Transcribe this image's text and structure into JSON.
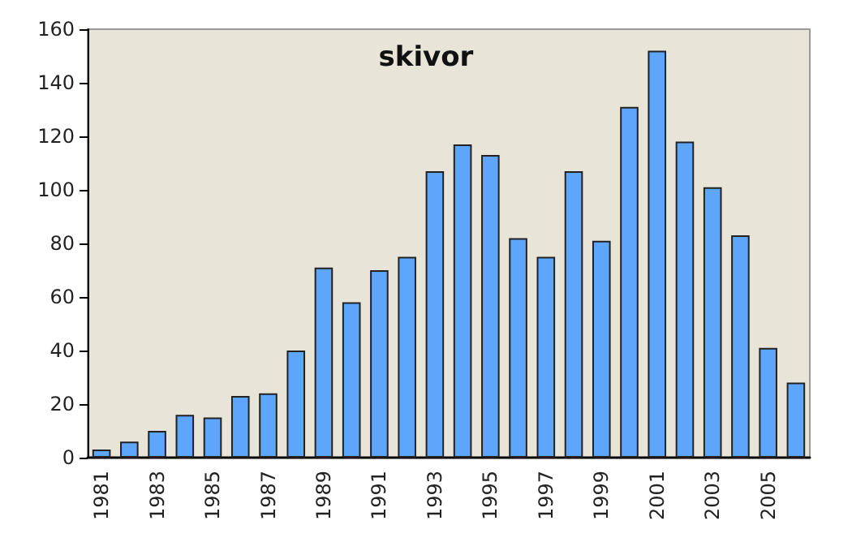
{
  "chart_data": {
    "type": "bar",
    "title": "skivor",
    "categories": [
      "1981",
      null,
      "1983",
      null,
      "1985",
      null,
      "1987",
      null,
      "1989",
      null,
      "1991",
      null,
      "1993",
      null,
      "1995",
      null,
      "1997",
      null,
      "1999",
      null,
      "2001",
      null,
      "2003",
      null,
      "2005",
      null
    ],
    "values": [
      3,
      6,
      10,
      16,
      15,
      23,
      24,
      40,
      71,
      58,
      70,
      75,
      107,
      117,
      113,
      82,
      75,
      107,
      81,
      131,
      152,
      118,
      101,
      83,
      41,
      28
    ],
    "color": "#5ea6fc",
    "ylim": [
      0,
      160
    ],
    "yticks": [
      0,
      20,
      40,
      60,
      80,
      100,
      120,
      140,
      160
    ]
  }
}
